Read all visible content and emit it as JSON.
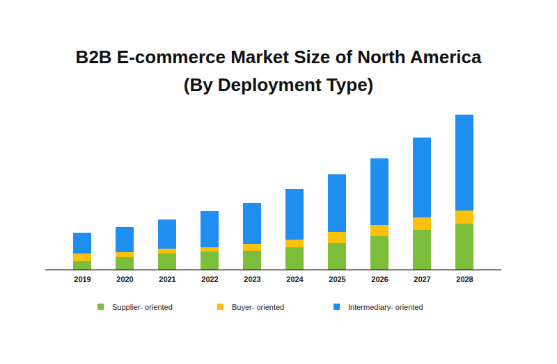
{
  "chart_data": {
    "type": "bar",
    "title": "B2B E-commerce Market Size of North America",
    "subtitle": "(By Deployment Type)",
    "categories": [
      "2019",
      "2020",
      "2021",
      "2022",
      "2023",
      "2024",
      "2025",
      "2026",
      "2027",
      "2028"
    ],
    "series": [
      {
        "name": "Supplier- oriented",
        "color": "#7cbd3a",
        "values": [
          12,
          18,
          23,
          26,
          27,
          32,
          38,
          48,
          57,
          66
        ]
      },
      {
        "name": "Buyer- oriented",
        "color": "#fcc10a",
        "values": [
          11,
          7,
          7,
          6,
          10,
          11,
          16,
          16,
          18,
          19
        ]
      },
      {
        "name": "Intermediary- oriented",
        "color": "#1e8ff0",
        "values": [
          30,
          36,
          42,
          52,
          59,
          73,
          83,
          96,
          115,
          138
        ]
      }
    ],
    "stacked": true,
    "ylim": [
      0,
      223
    ],
    "tick_labels": "x",
    "legend": "bottom"
  }
}
